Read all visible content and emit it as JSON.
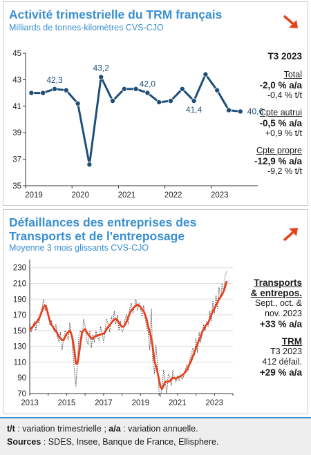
{
  "panel1": {
    "title": "Activité trimestrielle du TRM français",
    "subtitle": "Milliards de tonnes-kilomètres CVS-CJO",
    "trend_icon": "arrow-down-right-icon",
    "side": {
      "period": "T3 2023",
      "total_label": "Total",
      "total_aa": "-2,0 % a/a",
      "total_tt": "-0,4 % t/t",
      "autrui_label": "Cpte autrui",
      "autrui_aa": "-0,5 % a/a",
      "autrui_tt": "+0,9 % t/t",
      "propre_label": "Cpte propre",
      "propre_aa": "-12,9 % a/a",
      "propre_tt": "-9,2 % t/t"
    }
  },
  "panel2": {
    "title_line1": "Défaillances des entreprises des",
    "title_line2": "Transports et de l'entreposage",
    "subtitle": "Moyenne 3 mois glissants CVS-CJO",
    "trend_icon": "arrow-up-right-icon",
    "side": {
      "label1": "Transports",
      "label2": "& entrepos.",
      "period1": "Sept., oct. &",
      "period2": "nov. 2023",
      "value": "+33 % a/a",
      "trm_label": "TRM",
      "trm_period": "T3 2023",
      "trm_count": "412 défail.",
      "trm_value": "+29 % a/a"
    }
  },
  "footer": {
    "tt_abbr": "t/t",
    "tt_def": " : variation trimestrielle ; ",
    "aa_abbr": "a/a",
    "aa_def": " : variation annuelle.",
    "sources_label": "Sources",
    "sources_text": " : SDES, Insee, Banque de France, Ellisphere."
  },
  "colors": {
    "accent": "#3a8fd0",
    "line1": "#1f4e79",
    "line2": "#e8401c",
    "down_arrow": "#e8401c",
    "up_arrow": "#e8401c"
  },
  "chart_data": [
    {
      "type": "line",
      "x": [
        "2019T1",
        "2019T2",
        "2019T3",
        "2019T4",
        "2020T1",
        "2020T2",
        "2020T3",
        "2020T4",
        "2021T1",
        "2021T2",
        "2021T3",
        "2021T4",
        "2022T1",
        "2022T2",
        "2022T3",
        "2022T4",
        "2023T1",
        "2023T2",
        "2023T3"
      ],
      "series": [
        {
          "values": [
            42.0,
            42.0,
            42.3,
            42.2,
            41.2,
            36.6,
            43.2,
            41.4,
            42.3,
            42.3,
            42.0,
            41.3,
            41.4,
            42.3,
            41.4,
            43.4,
            42.2,
            40.7,
            40.6
          ]
        }
      ],
      "point_labels": [
        {
          "index": 2,
          "text": "42,3"
        },
        {
          "index": 6,
          "text": "43,2"
        },
        {
          "index": 10,
          "text": "42,0"
        },
        {
          "index": 14,
          "text": "41,4"
        },
        {
          "index": 18,
          "text": "40,6"
        }
      ],
      "x_ticks": [
        "2019",
        "2020",
        "2021",
        "2022",
        "2023"
      ],
      "y_ticks": [
        35,
        37,
        39,
        41,
        43,
        45
      ],
      "ylim": [
        35,
        45
      ],
      "xlim": [
        2019,
        2024
      ],
      "grid": false
    },
    {
      "type": "line",
      "x_start": 2013.0,
      "x_step": 0.0833333,
      "series": [
        {
          "style": "dotted",
          "values": [
            160,
            148,
            154,
            162,
            150,
            165,
            158,
            172,
            178,
            190,
            175,
            182,
            168,
            158,
            162,
            155,
            148,
            158,
            142,
            135,
            148,
            125,
            140,
            150,
            145,
            138,
            160,
            148,
            125,
            100,
            78,
            110,
            145,
            150,
            140,
            165,
            155,
            138,
            132,
            150,
            128,
            145,
            135,
            150,
            142,
            138,
            155,
            148,
            135,
            152,
            165,
            158,
            148,
            168,
            160,
            175,
            158,
            170,
            150,
            162,
            148,
            152,
            165,
            170,
            158,
            178,
            185,
            172,
            180,
            190,
            175,
            185,
            178,
            168,
            182,
            165,
            155,
            148,
            125,
            178,
            110,
            95,
            132,
            108,
            72,
            66,
            80,
            100,
            85,
            70,
            95,
            92,
            80,
            100,
            90,
            85,
            92,
            86,
            95,
            88,
            92,
            100,
            106,
            98,
            112,
            120,
            128,
            118,
            140,
            122,
            148,
            135,
            145,
            158,
            150,
            162,
            155,
            175,
            162,
            188,
            172,
            195,
            178,
            205,
            190,
            210,
            200,
            220,
            225
          ]
        },
        {
          "style": "solid",
          "values": [
            150,
            153,
            155,
            158,
            160,
            162,
            165,
            170,
            175,
            180,
            182,
            178,
            170,
            163,
            158,
            155,
            152,
            150,
            146,
            142,
            140,
            138,
            138,
            142,
            146,
            148,
            150,
            146,
            138,
            125,
            108,
            108,
            120,
            135,
            148,
            150,
            152,
            148,
            145,
            143,
            140,
            140,
            142,
            143,
            144,
            144,
            145,
            146,
            146,
            148,
            152,
            155,
            157,
            160,
            162,
            164,
            165,
            163,
            160,
            157,
            155,
            155,
            158,
            162,
            167,
            172,
            176,
            178,
            180,
            182,
            183,
            182,
            180,
            177,
            175,
            170,
            164,
            155,
            148,
            140,
            128,
            112,
            105,
            97,
            88,
            78,
            76,
            80,
            85,
            85,
            85,
            86,
            88,
            90,
            90,
            89,
            90,
            91,
            92,
            93,
            95,
            97,
            100,
            104,
            108,
            112,
            118,
            122,
            128,
            133,
            138,
            142,
            148,
            152,
            155,
            158,
            160,
            165,
            170,
            175,
            178,
            182,
            186,
            190,
            193,
            196,
            200,
            206,
            213
          ]
        }
      ],
      "x_ticks": [
        "2013",
        "2015",
        "2017",
        "2019",
        "2021",
        "2023"
      ],
      "y_ticks": [
        70,
        90,
        110,
        130,
        150,
        170,
        190,
        210,
        230
      ],
      "ylim": [
        70,
        235
      ],
      "xlim": [
        2013,
        2024
      ],
      "grid": true
    }
  ]
}
